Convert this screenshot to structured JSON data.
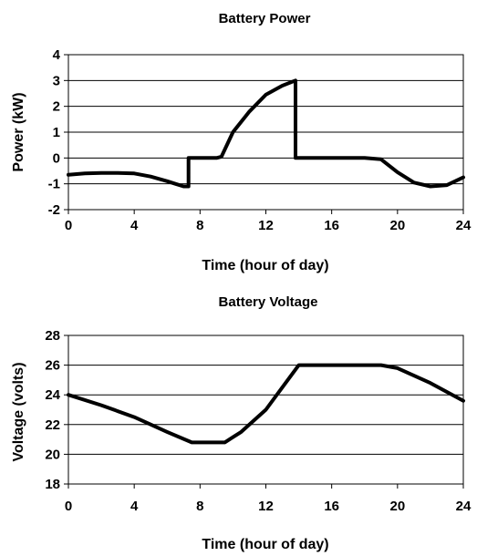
{
  "chart_data": [
    {
      "type": "line",
      "title": "Battery Power",
      "xlabel": "Time (hour of day)",
      "ylabel": "Power (kW)",
      "xlim": [
        0,
        24
      ],
      "ylim": [
        -2,
        4
      ],
      "xticks": [
        0,
        4,
        8,
        12,
        16,
        20,
        24
      ],
      "yticks": [
        -2,
        -1,
        0,
        1,
        2,
        3,
        4
      ],
      "grid": "horizontal",
      "legend": "none",
      "line_color": "#000000",
      "series": [
        {
          "x": [
            0,
            1,
            2,
            3,
            4,
            5,
            6,
            6.5,
            7,
            7.3,
            7.3,
            8,
            9,
            9.3,
            10,
            11,
            12,
            13,
            13.8,
            13.8,
            15,
            16,
            17,
            18,
            19,
            20,
            21,
            22,
            23,
            24
          ],
          "y": [
            -0.65,
            -0.6,
            -0.58,
            -0.58,
            -0.6,
            -0.72,
            -0.9,
            -1.0,
            -1.1,
            -1.1,
            0,
            0,
            0,
            0.05,
            1.0,
            1.8,
            2.45,
            2.8,
            3.0,
            0,
            0,
            0,
            0,
            0,
            -0.05,
            -0.55,
            -0.95,
            -1.1,
            -1.05,
            -0.75
          ]
        }
      ]
    },
    {
      "type": "line",
      "title": "Battery Voltage",
      "xlabel": "Time (hour of day)",
      "ylabel": "Voltage (volts)",
      "xlim": [
        0,
        24
      ],
      "ylim": [
        18,
        28
      ],
      "xticks": [
        0,
        4,
        8,
        12,
        16,
        20,
        24
      ],
      "yticks": [
        18,
        20,
        22,
        24,
        26,
        28
      ],
      "grid": "horizontal",
      "legend": "none",
      "line_color": "#000000",
      "series": [
        {
          "x": [
            0,
            2,
            4,
            6,
            7.5,
            9.5,
            10.5,
            12,
            13,
            14,
            16,
            19,
            20,
            22,
            24
          ],
          "y": [
            24,
            23.3,
            22.5,
            21.5,
            20.8,
            20.8,
            21.5,
            23.0,
            24.5,
            26,
            26,
            26,
            25.8,
            24.8,
            23.6
          ]
        }
      ]
    }
  ]
}
